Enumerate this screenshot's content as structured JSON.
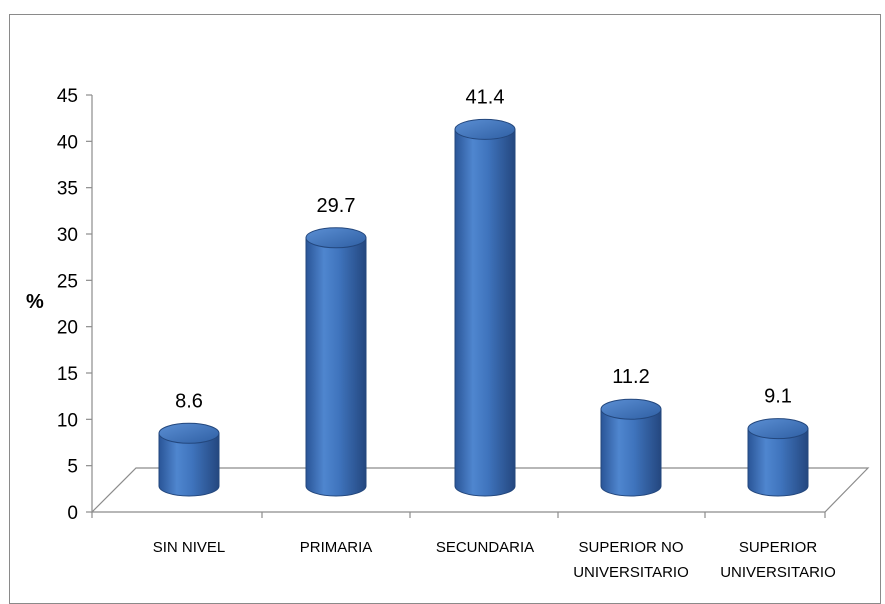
{
  "chart_data": {
    "type": "bar",
    "title": "",
    "xlabel": "",
    "ylabel": "%",
    "ylim": [
      0,
      45
    ],
    "yticks": [
      0,
      5,
      10,
      15,
      20,
      25,
      30,
      35,
      40,
      45
    ],
    "categories": [
      [
        "SIN NIVEL"
      ],
      [
        "PRIMARIA"
      ],
      [
        "SECUNDARIA"
      ],
      [
        "SUPERIOR NO",
        "UNIVERSITARIO"
      ],
      [
        "SUPERIOR",
        "UNIVERSITARIO"
      ]
    ],
    "values": [
      8.6,
      29.7,
      41.4,
      11.2,
      9.1
    ],
    "data_labels": [
      "8.6",
      "29.7",
      "41.4",
      "11.2",
      "9.1"
    ],
    "bar_shape": "cylinder",
    "bar_color": "#3a6fba",
    "grid": false,
    "legend": "none"
  }
}
